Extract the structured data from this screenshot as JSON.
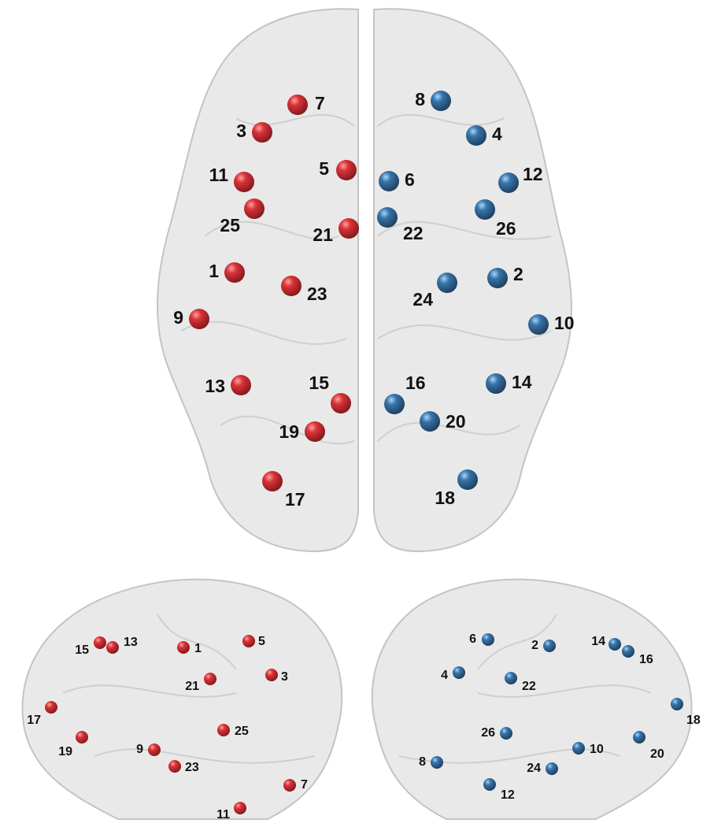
{
  "axial_view": {
    "left_color": "#c8141a",
    "right_color": "#1f5f94",
    "left_nodes": [
      {
        "label": "7"
      },
      {
        "label": "3"
      },
      {
        "label": "5"
      },
      {
        "label": "11"
      },
      {
        "label": "25"
      },
      {
        "label": "21"
      },
      {
        "label": "1"
      },
      {
        "label": "23"
      },
      {
        "label": "9"
      },
      {
        "label": "13"
      },
      {
        "label": "15"
      },
      {
        "label": "19"
      },
      {
        "label": "17"
      }
    ],
    "right_nodes": [
      {
        "label": "8"
      },
      {
        "label": "4"
      },
      {
        "label": "6"
      },
      {
        "label": "12"
      },
      {
        "label": "22"
      },
      {
        "label": "26"
      },
      {
        "label": "2"
      },
      {
        "label": "24"
      },
      {
        "label": "10"
      },
      {
        "label": "14"
      },
      {
        "label": "16"
      },
      {
        "label": "20"
      },
      {
        "label": "18"
      }
    ]
  },
  "left_lateral_view": {
    "color": "#c8141a",
    "nodes": [
      {
        "label": "15"
      },
      {
        "label": "13"
      },
      {
        "label": "1"
      },
      {
        "label": "5"
      },
      {
        "label": "21"
      },
      {
        "label": "3"
      },
      {
        "label": "17"
      },
      {
        "label": "19"
      },
      {
        "label": "9"
      },
      {
        "label": "25"
      },
      {
        "label": "23"
      },
      {
        "label": "7"
      },
      {
        "label": "11"
      }
    ]
  },
  "right_lateral_view": {
    "color": "#1f5f94",
    "nodes": [
      {
        "label": "6"
      },
      {
        "label": "2"
      },
      {
        "label": "14"
      },
      {
        "label": "16"
      },
      {
        "label": "4"
      },
      {
        "label": "22"
      },
      {
        "label": "18"
      },
      {
        "label": "26"
      },
      {
        "label": "10"
      },
      {
        "label": "20"
      },
      {
        "label": "8"
      },
      {
        "label": "24"
      },
      {
        "label": "12"
      }
    ]
  }
}
